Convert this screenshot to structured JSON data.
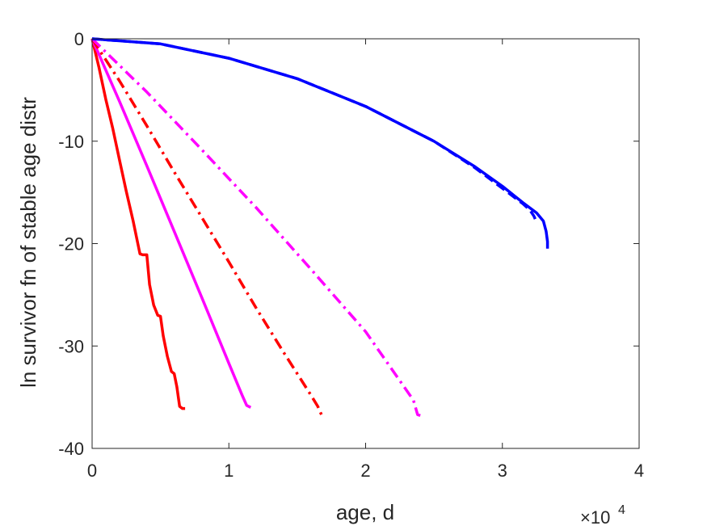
{
  "chart_data": {
    "type": "line",
    "title": "",
    "xlabel": "age, d",
    "ylabel": "ln survivor fn of stable age distr",
    "x_multiplier_label": {
      "base": "×10",
      "exponent": "4"
    },
    "xlim": [
      0,
      40000
    ],
    "ylim": [
      -40,
      0
    ],
    "x_ticks": [
      0,
      10000,
      20000,
      30000,
      40000
    ],
    "x_tick_labels": [
      "0",
      "1",
      "2",
      "3",
      "4"
    ],
    "y_ticks": [
      0,
      -10,
      -20,
      -30,
      -40
    ],
    "y_tick_labels": [
      "0",
      "-10",
      "-20",
      "-30",
      "-40"
    ],
    "grid": false,
    "series": [
      {
        "color": "#ff0000",
        "style": "solid",
        "x": [
          0,
          500,
          1000,
          1500,
          2000,
          2500,
          3000,
          3500,
          3700,
          4000,
          4200,
          4500,
          4800,
          5000,
          5200,
          5500,
          5800,
          6000,
          6200,
          6400,
          6600,
          6800
        ],
        "y": [
          0,
          -2.8,
          -5.9,
          -8.7,
          -11.8,
          -14.9,
          -17.8,
          -21.0,
          -21.1,
          -21.1,
          -24.0,
          -26.0,
          -27.0,
          -27.1,
          -29.0,
          -31.0,
          -32.5,
          -32.7,
          -34.0,
          -35.9,
          -36.1,
          -36.1
        ]
      },
      {
        "color": "#ff00ff",
        "style": "solid",
        "x": [
          0,
          2000,
          4000,
          6000,
          8000,
          10000,
          11000,
          11300,
          11600
        ],
        "y": [
          0,
          -6.1,
          -12.4,
          -18.8,
          -25.2,
          -31.7,
          -34.9,
          -35.8,
          -36.0
        ]
      },
      {
        "color": "#ff0000",
        "style": "dashdot",
        "x": [
          0,
          2000,
          4000,
          6000,
          8000,
          10000,
          12000,
          14000,
          16000,
          16500,
          16800
        ],
        "y": [
          0,
          -4.1,
          -8.5,
          -13.0,
          -17.4,
          -21.8,
          -26.3,
          -30.6,
          -34.8,
          -35.9,
          -36.8
        ]
      },
      {
        "color": "#ff00ff",
        "style": "dashdot",
        "x": [
          0,
          4000,
          8000,
          12000,
          16000,
          20000,
          23500,
          23800,
          24000
        ],
        "y": [
          0,
          -5.2,
          -10.8,
          -16.5,
          -22.5,
          -28.6,
          -35.3,
          -36.7,
          -36.8
        ]
      },
      {
        "color": "#0000ff",
        "style": "dashed",
        "x": [
          0,
          5000,
          10000,
          15000,
          20000,
          25000,
          28000,
          30000,
          31500,
          32000,
          32300,
          32400
        ],
        "y": [
          0,
          -0.5,
          -1.9,
          -3.9,
          -6.6,
          -10.0,
          -12.6,
          -14.6,
          -16.1,
          -16.7,
          -17.3,
          -17.6
        ]
      },
      {
        "color": "#0000ff",
        "style": "solid",
        "x": [
          0,
          5000,
          10000,
          15000,
          20000,
          25000,
          28000,
          30000,
          31500,
          32500,
          33000,
          33200,
          33300,
          33300
        ],
        "y": [
          0,
          -0.5,
          -1.9,
          -3.9,
          -6.6,
          -10.0,
          -12.5,
          -14.4,
          -16.0,
          -17.0,
          -17.8,
          -18.8,
          -19.8,
          -20.5
        ]
      }
    ]
  }
}
